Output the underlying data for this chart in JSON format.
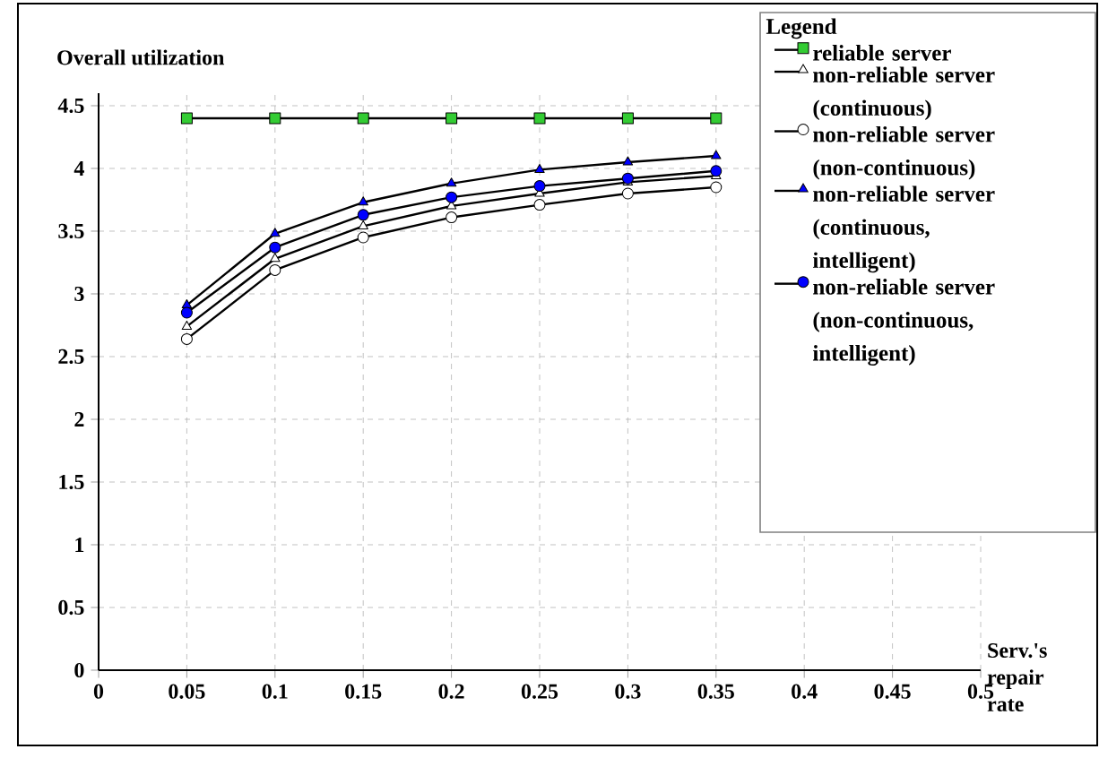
{
  "chart_data": {
    "type": "line",
    "ylabel": "Overall utilization",
    "xlabel": "Serv.'s repair rate",
    "legend_title": "Legend",
    "legend": "top right",
    "grid": true,
    "xlim": [
      0,
      0.5
    ],
    "ylim": [
      0,
      4.6
    ],
    "xticks": [
      0,
      0.05,
      0.1,
      0.15,
      0.2,
      0.25,
      0.3,
      0.35,
      0.4,
      0.45,
      0.5
    ],
    "yticks": [
      0,
      0.5,
      1,
      1.5,
      2,
      2.5,
      3,
      3.5,
      4,
      4.5
    ],
    "x": [
      0.05,
      0.1,
      0.15,
      0.2,
      0.25,
      0.3,
      0.35
    ],
    "series": [
      {
        "name": "reliable server",
        "color": "#33cc33",
        "marker": "square",
        "values": [
          4.4,
          4.4,
          4.4,
          4.4,
          4.4,
          4.4,
          4.4
        ]
      },
      {
        "name": "non-reliable server (continuous)",
        "color": "#ffffff",
        "marker": "triangle",
        "values": [
          2.74,
          3.28,
          3.54,
          3.7,
          3.8,
          3.89,
          3.94
        ]
      },
      {
        "name": "non-reliable server (non-continuous)",
        "color": "#ffffff",
        "marker": "circle",
        "values": [
          2.64,
          3.19,
          3.45,
          3.61,
          3.71,
          3.8,
          3.85
        ]
      },
      {
        "name": "non-reliable server (continuous, intelligent)",
        "color": "#0000ff",
        "marker": "triangle",
        "values": [
          2.91,
          3.48,
          3.73,
          3.88,
          3.99,
          4.05,
          4.1
        ]
      },
      {
        "name": "non-reliable server (non-continuous, intelligent)",
        "color": "#0000ff",
        "marker": "circle",
        "values": [
          2.85,
          3.37,
          3.63,
          3.77,
          3.86,
          3.92,
          3.98
        ]
      }
    ]
  }
}
